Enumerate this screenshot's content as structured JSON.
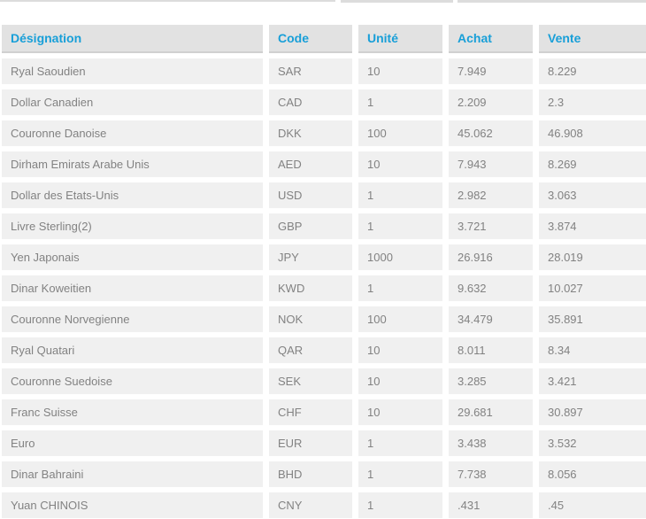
{
  "colors": {
    "accent_blue": "#189fd8",
    "header_bg": "#e2e2e2",
    "row_bg": "#f0f0f0",
    "row_text": "#828282"
  },
  "table": {
    "columns": [
      {
        "key": "designation",
        "label": "Désignation"
      },
      {
        "key": "code",
        "label": "Code"
      },
      {
        "key": "unite",
        "label": "Unité"
      },
      {
        "key": "achat",
        "label": "Achat"
      },
      {
        "key": "vente",
        "label": "Vente"
      }
    ],
    "rows": [
      {
        "designation": "Ryal Saoudien",
        "code": "SAR",
        "unite": "10",
        "achat": "7.949",
        "vente": "8.229"
      },
      {
        "designation": "Dollar Canadien",
        "code": "CAD",
        "unite": "1",
        "achat": "2.209",
        "vente": "2.3"
      },
      {
        "designation": "Couronne Danoise",
        "code": "DKK",
        "unite": "100",
        "achat": "45.062",
        "vente": "46.908"
      },
      {
        "designation": "Dirham Emirats Arabe Unis",
        "code": "AED",
        "unite": "10",
        "achat": "7.943",
        "vente": "8.269"
      },
      {
        "designation": "Dollar des Etats-Unis",
        "code": "USD",
        "unite": "1",
        "achat": "2.982",
        "vente": "3.063"
      },
      {
        "designation": "Livre Sterling(2)",
        "code": "GBP",
        "unite": "1",
        "achat": "3.721",
        "vente": "3.874"
      },
      {
        "designation": "Yen Japonais",
        "code": "JPY",
        "unite": "1000",
        "achat": "26.916",
        "vente": "28.019"
      },
      {
        "designation": "Dinar Koweitien",
        "code": "KWD",
        "unite": "1",
        "achat": "9.632",
        "vente": "10.027"
      },
      {
        "designation": "Couronne Norvegienne",
        "code": "NOK",
        "unite": "100",
        "achat": "34.479",
        "vente": "35.891"
      },
      {
        "designation": "Ryal Quatari",
        "code": "QAR",
        "unite": "10",
        "achat": "8.011",
        "vente": "8.34"
      },
      {
        "designation": "Couronne Suedoise",
        "code": "SEK",
        "unite": "10",
        "achat": "3.285",
        "vente": "3.421"
      },
      {
        "designation": "Franc Suisse",
        "code": "CHF",
        "unite": "10",
        "achat": "29.681",
        "vente": "30.897"
      },
      {
        "designation": "Euro",
        "code": "EUR",
        "unite": "1",
        "achat": "3.438",
        "vente": "3.532"
      },
      {
        "designation": "Dinar Bahraini",
        "code": "BHD",
        "unite": "1",
        "achat": "7.738",
        "vente": "8.056"
      },
      {
        "designation": "Yuan CHINOIS",
        "code": "CNY",
        "unite": "1",
        "achat": ".431",
        "vente": ".45"
      }
    ]
  }
}
